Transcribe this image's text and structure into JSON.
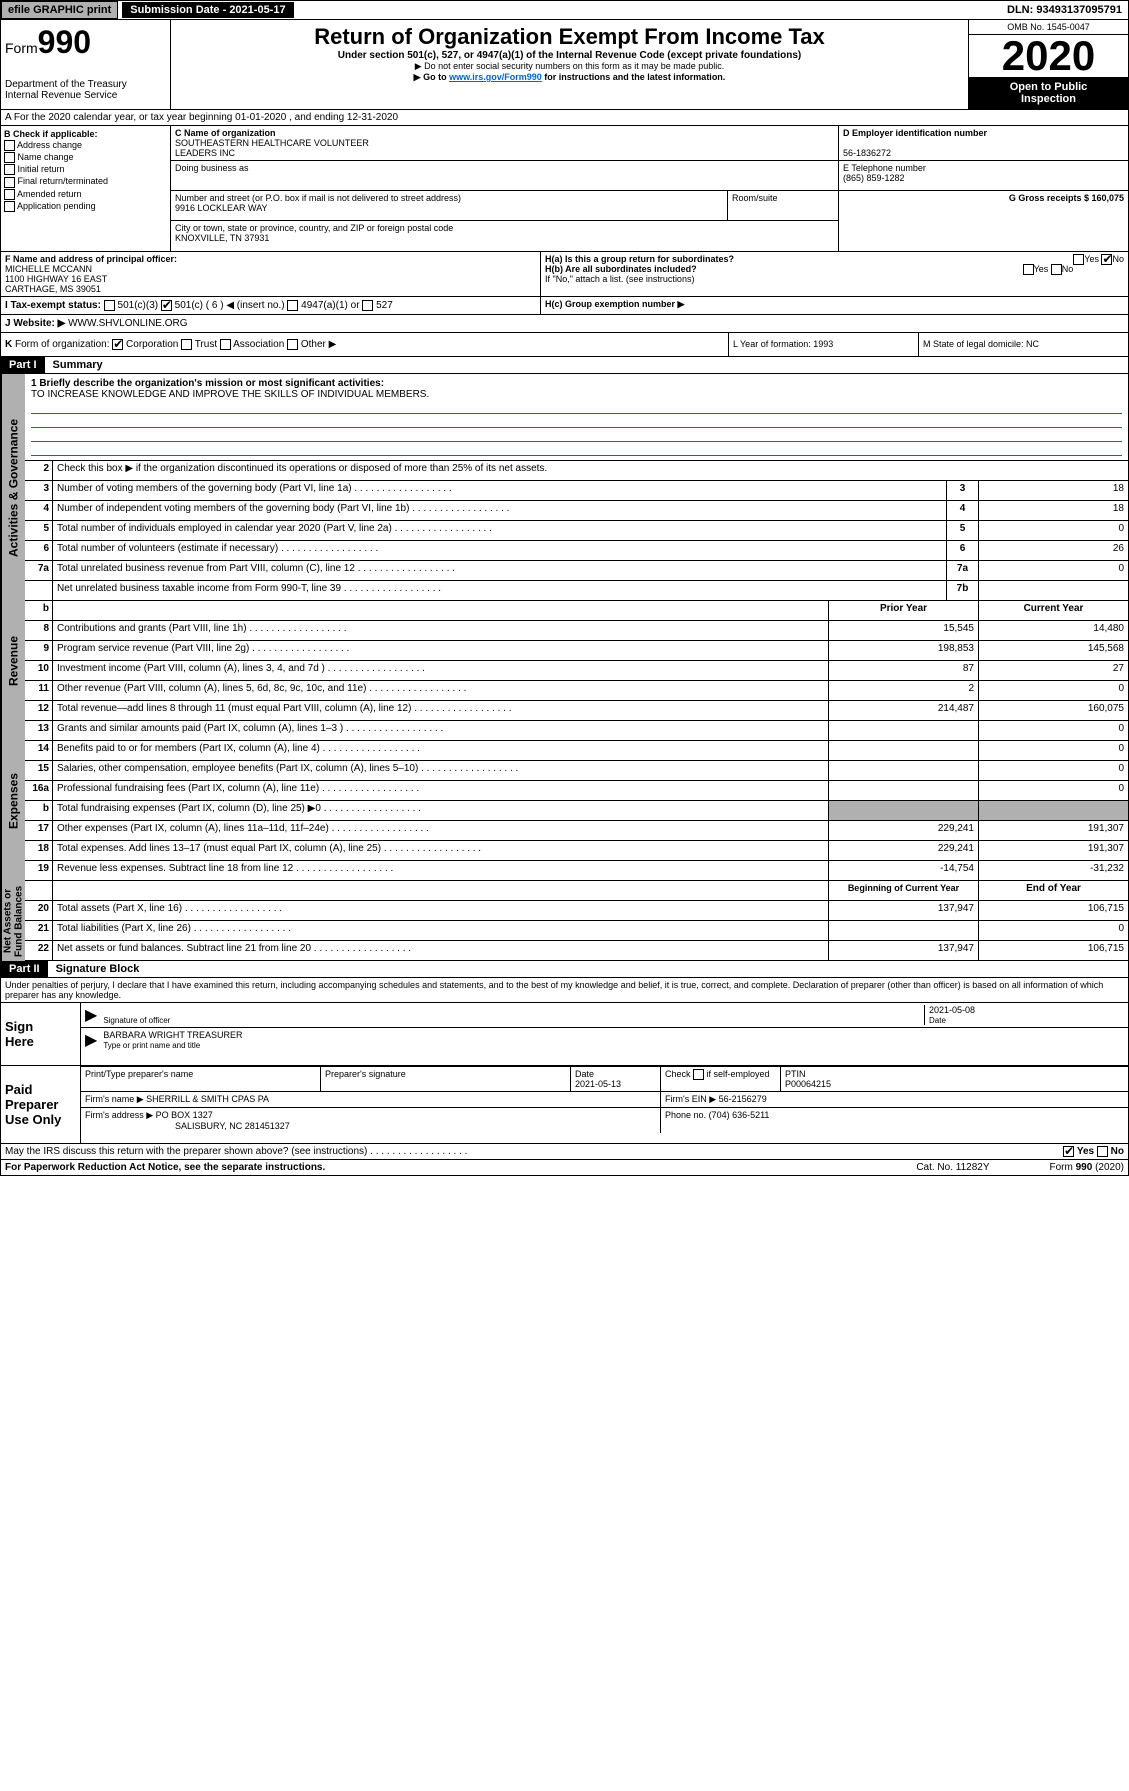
{
  "topbar": {
    "efile": "efile GRAPHIC print",
    "submission": "Submission Date - 2021-05-17",
    "dln": "DLN: 93493137095791"
  },
  "header": {
    "form_prefix": "Form",
    "form_num": "990",
    "dept": "Department of the Treasury\nInternal Revenue Service",
    "title": "Return of Organization Exempt From Income Tax",
    "subtitle": "Under section 501(c), 527, or 4947(a)(1) of the Internal Revenue Code (except private foundations)",
    "note1": "▶ Do not enter social security numbers on this form as it may be made public.",
    "note2_pre": "▶ Go to ",
    "note2_link": "www.irs.gov/Form990",
    "note2_post": " for instructions and the latest information.",
    "omb": "OMB No. 1545-0047",
    "year": "2020",
    "open": "Open to Public\nInspection"
  },
  "sectionA": "A For the 2020 calendar year, or tax year beginning 01-01-2020     , and ending 12-31-2020",
  "boxB": {
    "label": "B Check if applicable:",
    "opts": [
      "Address change",
      "Name change",
      "Initial return",
      "Final return/terminated",
      "Amended return",
      "Application pending"
    ]
  },
  "boxC": {
    "name_label": "C Name of organization",
    "name": "SOUTHEASTERN HEALTHCARE VOLUNTEER\nLEADERS INC",
    "dba_label": "Doing business as",
    "addr_label": "Number and street (or P.O. box if mail is not delivered to street address)",
    "room_label": "Room/suite",
    "addr": "9916 LOCKLEAR WAY",
    "city_label": "City or town, state or province, country, and ZIP or foreign postal code",
    "city": "KNOXVILLE, TN  37931"
  },
  "boxD": {
    "label": "D Employer identification number",
    "val": "56-1836272"
  },
  "boxE": {
    "label": "E Telephone number",
    "val": "(865) 859-1282"
  },
  "boxG": {
    "label": "G Gross receipts $ 160,075"
  },
  "boxF": {
    "label": "F  Name and address of principal officer:",
    "name": "MICHELLE MCCANN",
    "addr1": "1100 HIGHWAY 16 EAST",
    "addr2": "CARTHAGE, MS  39051"
  },
  "boxH": {
    "a": "H(a)  Is this a group return for subordinates?",
    "b": "H(b)  Are all subordinates included?",
    "b_note": "If \"No,\" attach a list. (see instructions)",
    "c": "H(c)  Group exemption number ▶",
    "yes": "Yes",
    "no": "No"
  },
  "boxI": {
    "label": "I     Tax-exempt status:",
    "o1": "501(c)(3)",
    "o2": "501(c) ( 6 ) ◀ (insert no.)",
    "o3": "4947(a)(1) or",
    "o4": "527"
  },
  "boxJ": {
    "label": "J     Website: ▶  ",
    "val": "WWW.SHVLONLINE.ORG"
  },
  "boxK": "K Form of organization:     Corporation     Trust     Association     Other ▶",
  "boxL": "L Year of formation: 1993",
  "boxM": "M State of legal domicile: NC",
  "part1": {
    "hdr": "Part I",
    "title": "Summary",
    "q1": "1  Briefly describe the organization's mission or most significant activities:",
    "mission": "TO INCREASE KNOWLEDGE AND IMPROVE THE SKILLS OF INDIVIDUAL MEMBERS.",
    "q2": "Check this box ▶     if the organization discontinued its operations or disposed of more than 25% of its net assets.",
    "rows_gov": [
      {
        "n": "3",
        "d": "Number of voting members of the governing body (Part VI, line 1a)",
        "r": "3",
        "v": "18"
      },
      {
        "n": "4",
        "d": "Number of independent voting members of the governing body (Part VI, line 1b)",
        "r": "4",
        "v": "18"
      },
      {
        "n": "5",
        "d": "Total number of individuals employed in calendar year 2020 (Part V, line 2a)",
        "r": "5",
        "v": "0"
      },
      {
        "n": "6",
        "d": "Total number of volunteers (estimate if necessary)",
        "r": "6",
        "v": "26"
      },
      {
        "n": "7a",
        "d": "Total unrelated business revenue from Part VIII, column (C), line 12",
        "r": "7a",
        "v": "0"
      },
      {
        "n": "",
        "d": "Net unrelated business taxable income from Form 990-T, line 39",
        "r": "7b",
        "v": ""
      }
    ],
    "col_hdr": {
      "b": "b",
      "py": "Prior Year",
      "cy": "Current Year"
    },
    "rows_rev": [
      {
        "n": "8",
        "d": "Contributions and grants (Part VIII, line 1h)",
        "py": "15,545",
        "cy": "14,480"
      },
      {
        "n": "9",
        "d": "Program service revenue (Part VIII, line 2g)",
        "py": "198,853",
        "cy": "145,568"
      },
      {
        "n": "10",
        "d": "Investment income (Part VIII, column (A), lines 3, 4, and 7d )",
        "py": "87",
        "cy": "27"
      },
      {
        "n": "11",
        "d": "Other revenue (Part VIII, column (A), lines 5, 6d, 8c, 9c, 10c, and 11e)",
        "py": "2",
        "cy": "0"
      },
      {
        "n": "12",
        "d": "Total revenue—add lines 8 through 11 (must equal Part VIII, column (A), line 12)",
        "py": "214,487",
        "cy": "160,075"
      }
    ],
    "rows_exp": [
      {
        "n": "13",
        "d": "Grants and similar amounts paid (Part IX, column (A), lines 1–3 )",
        "py": "",
        "cy": "0"
      },
      {
        "n": "14",
        "d": "Benefits paid to or for members (Part IX, column (A), line 4)",
        "py": "",
        "cy": "0"
      },
      {
        "n": "15",
        "d": "Salaries, other compensation, employee benefits (Part IX, column (A), lines 5–10)",
        "py": "",
        "cy": "0"
      },
      {
        "n": "16a",
        "d": "Professional fundraising fees (Part IX, column (A), line 11e)",
        "py": "",
        "cy": "0"
      },
      {
        "n": "b",
        "d": "Total fundraising expenses (Part IX, column (D), line 25) ▶0",
        "py": "GRAY",
        "cy": "GRAY"
      },
      {
        "n": "17",
        "d": "Other expenses (Part IX, column (A), lines 11a–11d, 11f–24e)",
        "py": "229,241",
        "cy": "191,307"
      },
      {
        "n": "18",
        "d": "Total expenses. Add lines 13–17 (must equal Part IX, column (A), line 25)",
        "py": "229,241",
        "cy": "191,307"
      },
      {
        "n": "19",
        "d": "Revenue less expenses. Subtract line 18 from line 12",
        "py": "-14,754",
        "cy": "-31,232"
      }
    ],
    "col_hdr2": {
      "py": "Beginning of Current Year",
      "cy": "End of Year"
    },
    "rows_net": [
      {
        "n": "20",
        "d": "Total assets (Part X, line 16)",
        "py": "137,947",
        "cy": "106,715"
      },
      {
        "n": "21",
        "d": "Total liabilities (Part X, line 26)",
        "py": "",
        "cy": "0"
      },
      {
        "n": "22",
        "d": "Net assets or fund balances. Subtract line 21 from line 20",
        "py": "137,947",
        "cy": "106,715"
      }
    ],
    "side1": "Activities & Governance",
    "side2": "Revenue",
    "side3": "Expenses",
    "side4": "Net Assets or\nFund Balances"
  },
  "part2": {
    "hdr": "Part II",
    "title": "Signature Block",
    "decl": "Under penalties of perjury, I declare that I have examined this return, including accompanying schedules and statements, and to the best of my knowledge and belief, it is true, correct, and complete. Declaration of preparer (other than officer) is based on all information of which preparer has any knowledge.",
    "sign_here": "Sign\nHere",
    "sig_officer": "Signature of officer",
    "date": "2021-05-08",
    "date_l": "Date",
    "name_title": "BARBARA WRIGHT  TREASURER",
    "name_title_l": "Type or print name and title",
    "paid": "Paid\nPreparer\nUse Only",
    "p1": "Print/Type preparer's name",
    "p2": "Preparer's signature",
    "p3": "Date",
    "p3v": "2021-05-13",
    "p4": "Check     if self-employed",
    "p5": "PTIN",
    "p5v": "P00064215",
    "firm_l": "Firm's name    ▶",
    "firm": "SHERRILL & SMITH CPAS PA",
    "ein_l": "Firm's EIN ▶",
    "ein": "56-2156279",
    "addr_l": "Firm's address ▶",
    "addr": "PO BOX 1327",
    "addr2": "SALISBURY, NC  281451327",
    "phone_l": "Phone no.",
    "phone": "(704) 636-5211",
    "discuss": "May the IRS discuss this return with the preparer shown above? (see instructions)",
    "paperwork": "For Paperwork Reduction Act Notice, see the separate instructions.",
    "cat": "Cat. No. 11282Y",
    "form": "Form 990 (2020)"
  }
}
